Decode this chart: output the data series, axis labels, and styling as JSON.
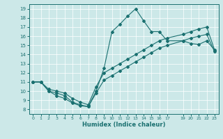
{
  "xlabel": "Humidex (Indice chaleur)",
  "bg_color": "#cce8e8",
  "line_color": "#1a7070",
  "xlim": [
    -0.5,
    23.5
  ],
  "ylim": [
    7.5,
    19.5
  ],
  "xticks": [
    0,
    1,
    2,
    3,
    4,
    5,
    6,
    7,
    8,
    9,
    10,
    11,
    12,
    13,
    14,
    15,
    16,
    17,
    19,
    20,
    21,
    22,
    23
  ],
  "yticks": [
    8,
    9,
    10,
    11,
    12,
    13,
    14,
    15,
    16,
    17,
    18,
    19
  ],
  "spike_x": [
    0,
    1,
    2,
    3,
    4,
    5,
    6,
    7,
    8,
    9,
    10,
    11,
    12,
    13,
    14,
    15,
    16,
    17,
    19,
    20,
    21,
    22,
    23
  ],
  "spike_y": [
    11,
    11,
    10,
    9.8,
    9.5,
    8.8,
    8.5,
    8.3,
    10,
    12.5,
    16.5,
    17.3,
    18.2,
    19,
    17.7,
    16.5,
    16.5,
    15.5,
    15.5,
    15.2,
    15.1,
    15.5,
    14.5
  ],
  "upper_x": [
    0,
    1,
    2,
    3,
    4,
    5,
    6,
    7,
    8,
    9,
    10,
    11,
    12,
    13,
    14,
    15,
    16,
    17,
    19,
    20,
    21,
    22,
    23
  ],
  "upper_y": [
    11,
    11,
    10.2,
    10,
    9.8,
    9.2,
    8.8,
    8.5,
    10.5,
    12,
    12.5,
    13,
    13.5,
    14,
    14.5,
    15,
    15.5,
    15.8,
    16.2,
    16.5,
    16.8,
    17,
    14.5
  ],
  "lower_x": [
    0,
    1,
    2,
    3,
    4,
    5,
    6,
    7,
    8,
    9,
    10,
    11,
    12,
    13,
    14,
    15,
    16,
    17,
    19,
    20,
    21,
    22,
    23
  ],
  "lower_y": [
    11,
    11,
    10,
    9.5,
    9.2,
    8.7,
    8.4,
    8.3,
    9.8,
    11.2,
    11.7,
    12.2,
    12.7,
    13.2,
    13.7,
    14.2,
    14.7,
    15.0,
    15.5,
    15.8,
    16.0,
    16.2,
    14.3
  ]
}
